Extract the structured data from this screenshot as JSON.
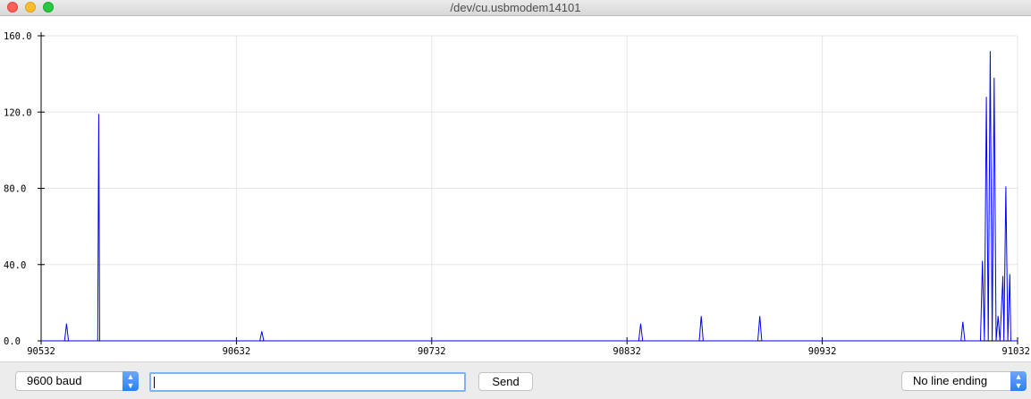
{
  "window": {
    "title": "/dev/cu.usbmodem14101"
  },
  "controls": {
    "baud_label": "9600 baud",
    "send_label": "Send",
    "input_value": "",
    "line_ending_label": "No line ending"
  },
  "colors": {
    "series": "#0000ff",
    "grid": "#e6e6e6",
    "axis": "#000000"
  },
  "chart_data": {
    "type": "line",
    "xlim": [
      90532,
      91032
    ],
    "ylim": [
      0,
      160
    ],
    "x_ticks": [
      "90532",
      "90632",
      "90732",
      "90832",
      "90932",
      "91032"
    ],
    "y_ticks": [
      "0.0",
      "40.0",
      "80.0",
      "120.0",
      "160.0"
    ],
    "grid": true,
    "series": [
      {
        "values": [
          {
            "x": 90544,
            "y": 0
          },
          {
            "x": 90545,
            "y": 9
          },
          {
            "x": 90546,
            "y": 0
          },
          {
            "x": 90561,
            "y": 0
          },
          {
            "x": 90561.5,
            "y": 119
          },
          {
            "x": 90562,
            "y": 0
          },
          {
            "x": 90644,
            "y": 0
          },
          {
            "x": 90645,
            "y": 5
          },
          {
            "x": 90646,
            "y": 0
          },
          {
            "x": 90838,
            "y": 0
          },
          {
            "x": 90839,
            "y": 9
          },
          {
            "x": 90840,
            "y": 0
          },
          {
            "x": 90869,
            "y": 0
          },
          {
            "x": 90870,
            "y": 13
          },
          {
            "x": 90871,
            "y": 0
          },
          {
            "x": 90899,
            "y": 0
          },
          {
            "x": 90900,
            "y": 13
          },
          {
            "x": 90901,
            "y": 0
          },
          {
            "x": 91003,
            "y": 0
          },
          {
            "x": 91004,
            "y": 10
          },
          {
            "x": 91005,
            "y": 0
          },
          {
            "x": 91013,
            "y": 0
          },
          {
            "x": 91014,
            "y": 42
          },
          {
            "x": 91015,
            "y": 0
          },
          {
            "x": 91016,
            "y": 128
          },
          {
            "x": 91017,
            "y": 0
          },
          {
            "x": 91018,
            "y": 152
          },
          {
            "x": 91019,
            "y": 0
          },
          {
            "x": 91020,
            "y": 138
          },
          {
            "x": 91021,
            "y": 0
          },
          {
            "x": 91022,
            "y": 13
          },
          {
            "x": 91023,
            "y": 0
          },
          {
            "x": 91024.5,
            "y": 34
          },
          {
            "x": 91025,
            "y": 0
          },
          {
            "x": 91026,
            "y": 81
          },
          {
            "x": 91027,
            "y": 0
          },
          {
            "x": 91028,
            "y": 35
          },
          {
            "x": 91028.5,
            "y": 0
          }
        ]
      }
    ]
  }
}
